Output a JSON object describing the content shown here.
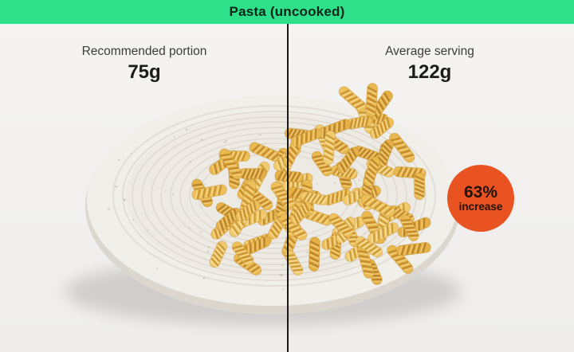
{
  "header": {
    "title": "Pasta (uncooked)",
    "bar_color": "#2ee08a"
  },
  "left": {
    "label": "Recommended portion",
    "value": "75g"
  },
  "right": {
    "label": "Average serving",
    "value": "122g"
  },
  "badge": {
    "percent": "63%",
    "text": "increase",
    "color": "#e95321"
  },
  "illustration": {
    "description": "white speckled ceramic plate with uncooked fusilli pasta, smaller portion on left of divider, larger pile on right",
    "divider_color": "#191919",
    "pasta_color": "#eabd55",
    "plate_color": "#f1efea"
  }
}
